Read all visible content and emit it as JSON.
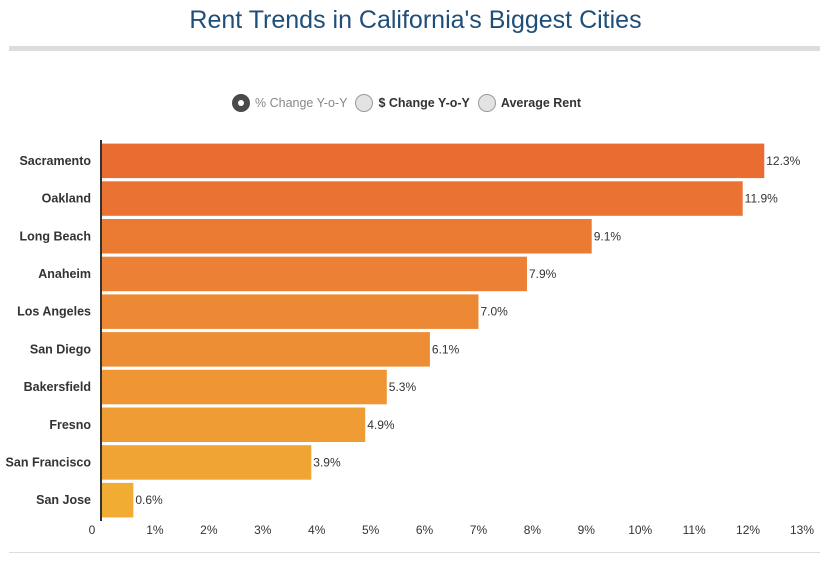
{
  "title": "Rent Trends in California's Biggest Cities",
  "toggles": [
    {
      "label": "% Change Y-o-Y",
      "selected": true
    },
    {
      "label": "$ Change Y-o-Y",
      "selected": false
    },
    {
      "label": "Average Rent",
      "selected": false
    }
  ],
  "chart_data": {
    "type": "bar",
    "orientation": "horizontal",
    "categories": [
      "Sacramento",
      "Oakland",
      "Long Beach",
      "Anaheim",
      "Los Angeles",
      "San Diego",
      "Bakersfield",
      "Fresno",
      "San Francisco",
      "San Jose"
    ],
    "values": [
      12.3,
      11.9,
      9.1,
      7.9,
      7.0,
      6.1,
      5.3,
      4.9,
      3.9,
      0.6
    ],
    "data_labels": [
      "12.3%",
      "11.9%",
      "9.1%",
      "7.9%",
      "7.0%",
      "6.1%",
      "5.3%",
      "4.9%",
      "3.9%",
      "0.6%"
    ],
    "xlim": [
      0,
      13
    ],
    "x_ticks": [
      "0",
      "1%",
      "2%",
      "3%",
      "4%",
      "5%",
      "6%",
      "7%",
      "8%",
      "9%",
      "10%",
      "11%",
      "12%",
      "13%"
    ],
    "colors": [
      "#e96c30",
      "#ea7232",
      "#eb7a33",
      "#ec8034",
      "#ed8834",
      "#ee8e34",
      "#ef9534",
      "#f09c34",
      "#f0a434",
      "#f1ac34"
    ],
    "grid": false,
    "legend": "none"
  }
}
